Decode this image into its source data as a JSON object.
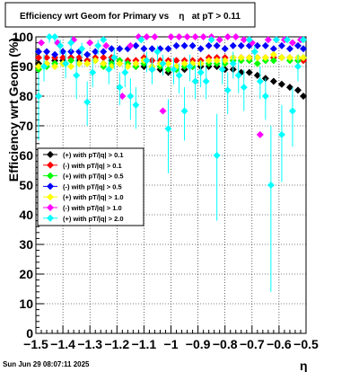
{
  "chart_data": {
    "type": "scatter",
    "title": "Efficiency wrt Geom for Primary vs    η   at pT > 0.11",
    "xlabel": "η",
    "ylabel": "Efficiency wrt Geom (%)",
    "xlim": [
      -1.5,
      -0.5
    ],
    "ylim": [
      0,
      100
    ],
    "x_ticks": [
      -1.5,
      -1.4,
      -1.3,
      -1.2,
      -1.1,
      -1,
      -0.9,
      -0.8,
      -0.7,
      -0.6,
      -0.5
    ],
    "x_tick_labels": [
      "−1.5",
      "−1.4",
      "−1.3",
      "−1.2",
      "−1.1",
      "−1",
      "−0.9",
      "−0.8",
      "−0.7",
      "−0.6",
      "−0.5"
    ],
    "y_ticks": [
      0,
      10,
      20,
      30,
      40,
      50,
      60,
      70,
      80,
      90,
      100
    ],
    "y_tick_labels": [
      "0",
      "10",
      "20",
      "30",
      "40",
      "50",
      "60",
      "70",
      "80",
      "90",
      "100"
    ],
    "grid": true,
    "legend_position": "middle-left",
    "timestamp": "Sun Jun 29 08:07:11 2025",
    "series": [
      {
        "name": "(+) with pT/|q| > 0.1",
        "color": "#000000",
        "x": [
          -1.49,
          -1.46,
          -1.43,
          -1.4,
          -1.37,
          -1.34,
          -1.31,
          -1.28,
          -1.25,
          -1.22,
          -1.19,
          -1.16,
          -1.13,
          -1.1,
          -1.07,
          -1.04,
          -1.01,
          -0.98,
          -0.95,
          -0.92,
          -0.89,
          -0.86,
          -0.83,
          -0.8,
          -0.77,
          -0.74,
          -0.71,
          -0.68,
          -0.65,
          -0.62,
          -0.59,
          -0.56,
          -0.53,
          -0.51
        ],
        "y": [
          91,
          91,
          92,
          92,
          93,
          92,
          92,
          92,
          91,
          92,
          91,
          91,
          90,
          90,
          89,
          89,
          88,
          89,
          89,
          90,
          90,
          90,
          90,
          89,
          89,
          88,
          88,
          87,
          86,
          85,
          84,
          83,
          82,
          80
        ]
      },
      {
        "name": "(-) with pT/|q| > 0.1",
        "color": "#ff0000",
        "x": [
          -1.49,
          -1.46,
          -1.43,
          -1.4,
          -1.37,
          -1.34,
          -1.31,
          -1.28,
          -1.25,
          -1.22,
          -1.19,
          -1.16,
          -1.13,
          -1.1,
          -1.07,
          -1.04,
          -1.01,
          -0.98,
          -0.95,
          -0.92,
          -0.89,
          -0.86,
          -0.83,
          -0.8,
          -0.77,
          -0.74,
          -0.71,
          -0.68,
          -0.65,
          -0.62,
          -0.59,
          -0.56,
          -0.53,
          -0.51
        ],
        "y": [
          93,
          93,
          93,
          93,
          93,
          93,
          92,
          93,
          93,
          93,
          92,
          92,
          92,
          93,
          92,
          92,
          92,
          92,
          92,
          92,
          92,
          93,
          93,
          93,
          93,
          93,
          93,
          93,
          93,
          93,
          93,
          93,
          92,
          92
        ]
      },
      {
        "name": "(+) with pT/|q| > 0.5",
        "color": "#00ff00",
        "x": [
          -1.49,
          -1.46,
          -1.43,
          -1.4,
          -1.37,
          -1.34,
          -1.31,
          -1.28,
          -1.25,
          -1.22,
          -1.19,
          -1.16,
          -1.13,
          -1.1,
          -1.07,
          -1.04,
          -1.01,
          -0.98,
          -0.95,
          -0.92,
          -0.89,
          -0.86,
          -0.83,
          -0.8,
          -0.77,
          -0.74,
          -0.71,
          -0.68,
          -0.65,
          -0.62,
          -0.59,
          -0.56,
          -0.53,
          -0.51
        ],
        "y": [
          89,
          90,
          91,
          91,
          92,
          91,
          91,
          92,
          90,
          91,
          92,
          91,
          90,
          91,
          90,
          90,
          89,
          89,
          90,
          90,
          91,
          91,
          91,
          91,
          92,
          92,
          92,
          91,
          92,
          92,
          93,
          92,
          92,
          93
        ]
      },
      {
        "name": "(-) with pT/|q| > 0.5",
        "color": "#0000ff",
        "x": [
          -1.49,
          -1.46,
          -1.43,
          -1.4,
          -1.37,
          -1.34,
          -1.31,
          -1.28,
          -1.25,
          -1.22,
          -1.19,
          -1.16,
          -1.13,
          -1.1,
          -1.07,
          -1.04,
          -1.01,
          -0.98,
          -0.95,
          -0.92,
          -0.89,
          -0.86,
          -0.83,
          -0.8,
          -0.77,
          -0.74,
          -0.71,
          -0.68,
          -0.65,
          -0.62,
          -0.59,
          -0.56,
          -0.53,
          -0.51
        ],
        "y": [
          95,
          95,
          94,
          95,
          95,
          95,
          94,
          95,
          95,
          96,
          96,
          96,
          97,
          96,
          96,
          96,
          96,
          97,
          97,
          97,
          96,
          97,
          97,
          96,
          97,
          97,
          97,
          97,
          97,
          96,
          97,
          96,
          97,
          96
        ]
      },
      {
        "name": "(+) with pT/|q| > 1.0",
        "color": "#ffff00",
        "x": [
          -1.49,
          -1.46,
          -1.43,
          -1.4,
          -1.37,
          -1.34,
          -1.31,
          -1.28,
          -1.25,
          -1.22,
          -1.19,
          -1.16,
          -1.13,
          -1.1,
          -1.07,
          -1.04,
          -1.01,
          -0.98,
          -0.95,
          -0.92,
          -0.89,
          -0.86,
          -0.83,
          -0.8,
          -0.77,
          -0.74,
          -0.71,
          -0.68,
          -0.65,
          -0.62,
          -0.59,
          -0.56,
          -0.53,
          -0.51
        ],
        "y": [
          90,
          91,
          90,
          91,
          90,
          91,
          91,
          92,
          91,
          90,
          91,
          90,
          91,
          92,
          90,
          91,
          91,
          90,
          91,
          91,
          91,
          92,
          92,
          92,
          93,
          93,
          93,
          93,
          93,
          94,
          93,
          93,
          93,
          93
        ]
      },
      {
        "name": "(-) with pT/|q| > 1.0",
        "color": "#ff00ff",
        "x": [
          -1.48,
          -1.42,
          -1.36,
          -1.3,
          -1.24,
          -1.18,
          -1.15,
          -1.12,
          -1.09,
          -1.06,
          -1.03,
          -1.0,
          -0.97,
          -0.94,
          -0.91,
          -0.88,
          -0.85,
          -0.82,
          -0.79,
          -0.76,
          -0.73,
          -0.7,
          -0.67,
          -0.64,
          -0.61,
          -0.58,
          -0.55,
          -0.52
        ],
        "y": [
          98,
          98,
          99,
          98,
          97,
          80,
          97,
          100,
          100,
          100,
          75,
          100,
          100,
          100,
          100,
          100,
          100,
          99,
          100,
          100,
          99,
          98,
          67,
          99,
          99,
          99,
          98,
          99
        ]
      },
      {
        "name": "(+) with pT/|q| > 2.0",
        "color": "#00ffff",
        "x": [
          -1.49,
          -1.47,
          -1.45,
          -1.43,
          -1.41,
          -1.39,
          -1.37,
          -1.35,
          -1.33,
          -1.31,
          -1.29,
          -1.27,
          -1.25,
          -1.23,
          -1.21,
          -1.19,
          -1.17,
          -1.15,
          -1.13,
          -1.11,
          -1.09,
          -1.07,
          -1.05,
          -1.03,
          -1.01,
          -0.99,
          -0.97,
          -0.95,
          -0.93,
          -0.91,
          -0.89,
          -0.87,
          -0.85,
          -0.83,
          -0.81,
          -0.79,
          -0.77,
          -0.75,
          -0.73,
          -0.71,
          -0.69,
          -0.67,
          -0.65,
          -0.63,
          -0.61,
          -0.59,
          -0.57,
          -0.55,
          -0.53,
          -0.51
        ],
        "y": [
          80,
          90,
          100,
          100,
          97,
          91,
          98,
          87,
          96,
          78,
          88,
          97,
          99,
          89,
          93,
          83,
          88,
          80,
          77,
          99,
          92,
          89,
          95,
          91,
          69,
          89,
          87,
          75,
          90,
          85,
          88,
          85,
          99,
          60,
          89,
          82,
          91,
          87,
          83,
          99,
          95,
          85,
          80,
          50,
          99,
          67,
          99,
          75,
          90,
          99
        ],
        "err_low": [
          15,
          5,
          2,
          2,
          3,
          5,
          3,
          8,
          3,
          8,
          5,
          3,
          1,
          5,
          4,
          6,
          5,
          8,
          8,
          1,
          4,
          5,
          3,
          4,
          15,
          5,
          6,
          10,
          5,
          6,
          5,
          6,
          1,
          22,
          5,
          8,
          5,
          6,
          8,
          1,
          3,
          6,
          8,
          36,
          1,
          16,
          1,
          12,
          5,
          1
        ],
        "err_high": [
          8,
          4,
          0,
          0,
          2,
          4,
          2,
          6,
          2,
          7,
          5,
          2,
          1,
          4,
          3,
          5,
          4,
          6,
          6,
          1,
          3,
          4,
          2,
          3,
          10,
          4,
          4,
          8,
          4,
          5,
          4,
          5,
          1,
          14,
          4,
          6,
          4,
          5,
          6,
          1,
          2,
          5,
          6,
          20,
          1,
          10,
          1,
          8,
          4,
          1
        ]
      }
    ]
  }
}
